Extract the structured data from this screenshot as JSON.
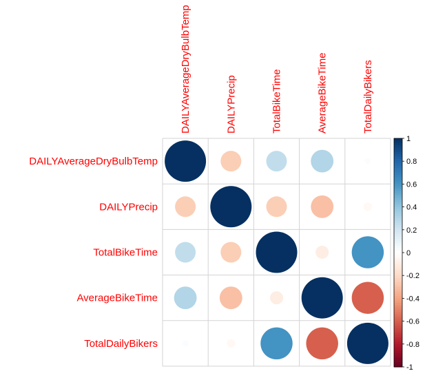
{
  "chart_data": {
    "type": "heatmap",
    "subtype": "correlation-circle-matrix",
    "variables": [
      "DAILYAverageDryBulbTemp",
      "DAILYPrecip",
      "TotalBikeTime",
      "AverageBikeTime",
      "TotalDailyBikers"
    ],
    "column_labels": [
      "DAILYAverageDryBulbTemp",
      "DAILYPrecip",
      "TotalBikeTime",
      "AverageBikeTime",
      "TotalDailyBikers"
    ],
    "row_labels": [
      "DAILYAverageDryBulbTemp",
      "DAILYPrecip",
      "TotalBikeTime",
      "AverageBikeTime",
      "TotalDailyBikers"
    ],
    "matrix": [
      [
        1.0,
        -0.25,
        0.25,
        0.3,
        0.02
      ],
      [
        -0.25,
        1.0,
        -0.25,
        -0.3,
        -0.04
      ],
      [
        0.25,
        -0.25,
        1.0,
        -0.1,
        0.6
      ],
      [
        0.3,
        -0.3,
        -0.1,
        1.0,
        -0.6
      ],
      [
        0.02,
        -0.04,
        0.6,
        -0.6,
        1.0
      ]
    ],
    "colorbar": {
      "ticks": [
        "1",
        "0.8",
        "0.6",
        "0.4",
        "0.2",
        "0",
        "-0.2",
        "-0.4",
        "-0.6",
        "-0.8",
        "-1"
      ],
      "range": [
        -1,
        1
      ]
    },
    "label_color": "#ff0000",
    "grid_color": "#d3d3d3",
    "palette": [
      "#67001f",
      "#b2182b",
      "#d6604d",
      "#f4a582",
      "#fddbc7",
      "#ffffff",
      "#d1e5f0",
      "#92c5de",
      "#4393c3",
      "#2166ac",
      "#053061"
    ]
  }
}
